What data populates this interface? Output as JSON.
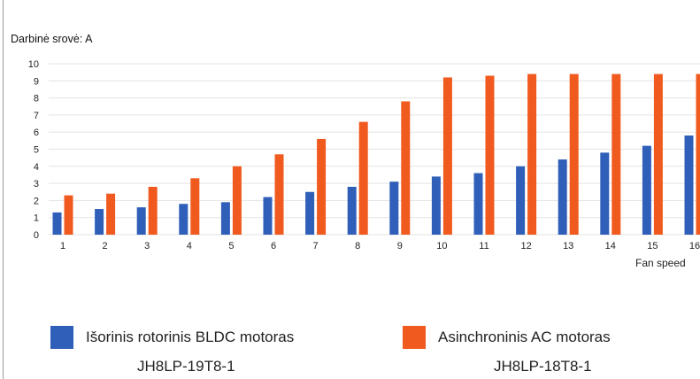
{
  "chart_data": {
    "type": "bar",
    "title": "Darbinė srovė: A",
    "xlabel": "Fan speed",
    "ylabel": "",
    "ylim": [
      0,
      10
    ],
    "yticks": [
      "0",
      "1",
      "2",
      "3",
      "4",
      "5",
      "6",
      "7",
      "8",
      "9",
      "10"
    ],
    "categories": [
      "1",
      "2",
      "3",
      "4",
      "5",
      "6",
      "7",
      "8",
      "9",
      "10",
      "11",
      "12",
      "13",
      "14",
      "15",
      "16"
    ],
    "grid": true,
    "legend_position": "bottom",
    "series": [
      {
        "name": "Išorinis rotorinis BLDC motoras",
        "model": "JH8LP-19T8-1",
        "color": "#2f5fb8",
        "values": [
          1.3,
          1.5,
          1.6,
          1.8,
          1.9,
          2.2,
          2.5,
          2.8,
          3.1,
          3.4,
          3.6,
          4.0,
          4.4,
          4.8,
          5.2,
          5.8
        ]
      },
      {
        "name": "Asinchroninis AC motoras",
        "model": "JH8LP-18T8-1",
        "color": "#f05a1e",
        "values": [
          2.3,
          2.4,
          2.8,
          3.3,
          4.0,
          4.7,
          5.6,
          6.6,
          7.8,
          9.2,
          9.3,
          9.4,
          9.4,
          9.4,
          9.4,
          9.4
        ]
      }
    ]
  }
}
